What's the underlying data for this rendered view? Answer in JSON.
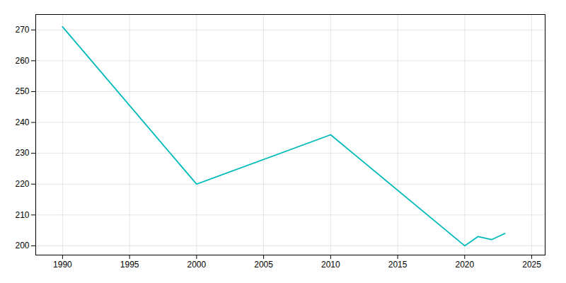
{
  "chart_data": {
    "type": "line",
    "x": [
      1990,
      2000,
      2010,
      2020,
      2021,
      2022,
      2023
    ],
    "values": [
      271,
      220,
      236,
      200,
      203,
      202,
      204
    ],
    "color": "#00BABA",
    "xlim": [
      1988,
      2026
    ],
    "ylim": [
      197,
      275
    ],
    "xticks": [
      1990,
      1995,
      2000,
      2005,
      2010,
      2015,
      2020,
      2025
    ],
    "yticks": [
      200,
      210,
      220,
      230,
      240,
      250,
      260,
      270
    ],
    "grid": true
  }
}
